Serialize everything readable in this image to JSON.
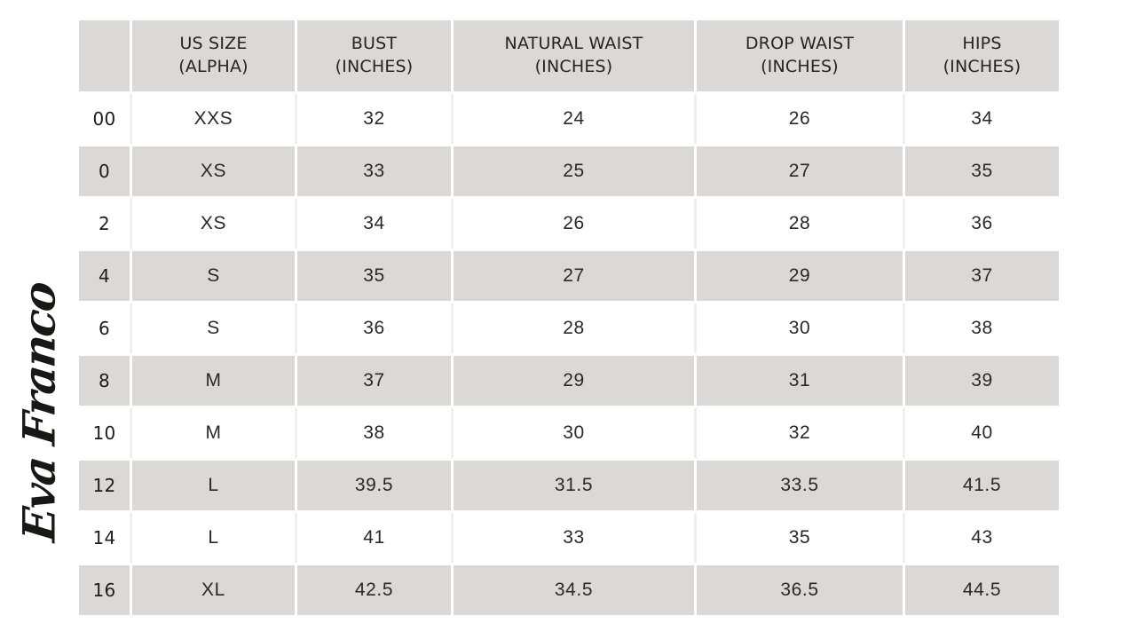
{
  "brand": {
    "logo_text": "Eva Franco"
  },
  "colors": {
    "row_shade": "#DCD8D5",
    "text": "#2B2826",
    "background": "#FFFFFF"
  },
  "table": {
    "columns": [
      {
        "line1": "",
        "line2": ""
      },
      {
        "line1": "US SIZE",
        "line2": "(ALPHA)"
      },
      {
        "line1": "BUST",
        "line2": "(INCHES)"
      },
      {
        "line1": "NATURAL WAIST",
        "line2": "(INCHES)"
      },
      {
        "line1": "DROP WAIST",
        "line2": "(INCHES)"
      },
      {
        "line1": "HIPS",
        "line2": "(INCHES)"
      }
    ],
    "rows": [
      [
        "00",
        "XXS",
        "32",
        "24",
        "26",
        "34"
      ],
      [
        "0",
        "XS",
        "33",
        "25",
        "27",
        "35"
      ],
      [
        "2",
        "XS",
        "34",
        "26",
        "28",
        "36"
      ],
      [
        "4",
        "S",
        "35",
        "27",
        "29",
        "37"
      ],
      [
        "6",
        "S",
        "36",
        "28",
        "30",
        "38"
      ],
      [
        "8",
        "M",
        "37",
        "29",
        "31",
        "39"
      ],
      [
        "10",
        "M",
        "38",
        "30",
        "32",
        "40"
      ],
      [
        "12",
        "L",
        "39.5",
        "31.5",
        "33.5",
        "41.5"
      ],
      [
        "14",
        "L",
        "41",
        "33",
        "35",
        "43"
      ],
      [
        "16",
        "XL",
        "42.5",
        "34.5",
        "36.5",
        "44.5"
      ]
    ]
  },
  "chart_data": {
    "type": "table",
    "columns": [
      "",
      "US SIZE (ALPHA)",
      "BUST (INCHES)",
      "NATURAL WAIST (INCHES)",
      "DROP WAIST (INCHES)",
      "HIPS (INCHES)"
    ],
    "rows": [
      [
        "00",
        "XXS",
        32,
        24,
        26,
        34
      ],
      [
        "0",
        "XS",
        33,
        25,
        27,
        35
      ],
      [
        "2",
        "XS",
        34,
        26,
        28,
        36
      ],
      [
        "4",
        "S",
        35,
        27,
        29,
        37
      ],
      [
        "6",
        "S",
        36,
        28,
        30,
        38
      ],
      [
        "8",
        "M",
        37,
        29,
        31,
        39
      ],
      [
        "10",
        "M",
        38,
        30,
        32,
        40
      ],
      [
        "12",
        "L",
        39.5,
        31.5,
        33.5,
        41.5
      ],
      [
        "14",
        "L",
        41,
        33,
        35,
        43
      ],
      [
        "16",
        "XL",
        42.5,
        34.5,
        36.5,
        44.5
      ]
    ]
  }
}
